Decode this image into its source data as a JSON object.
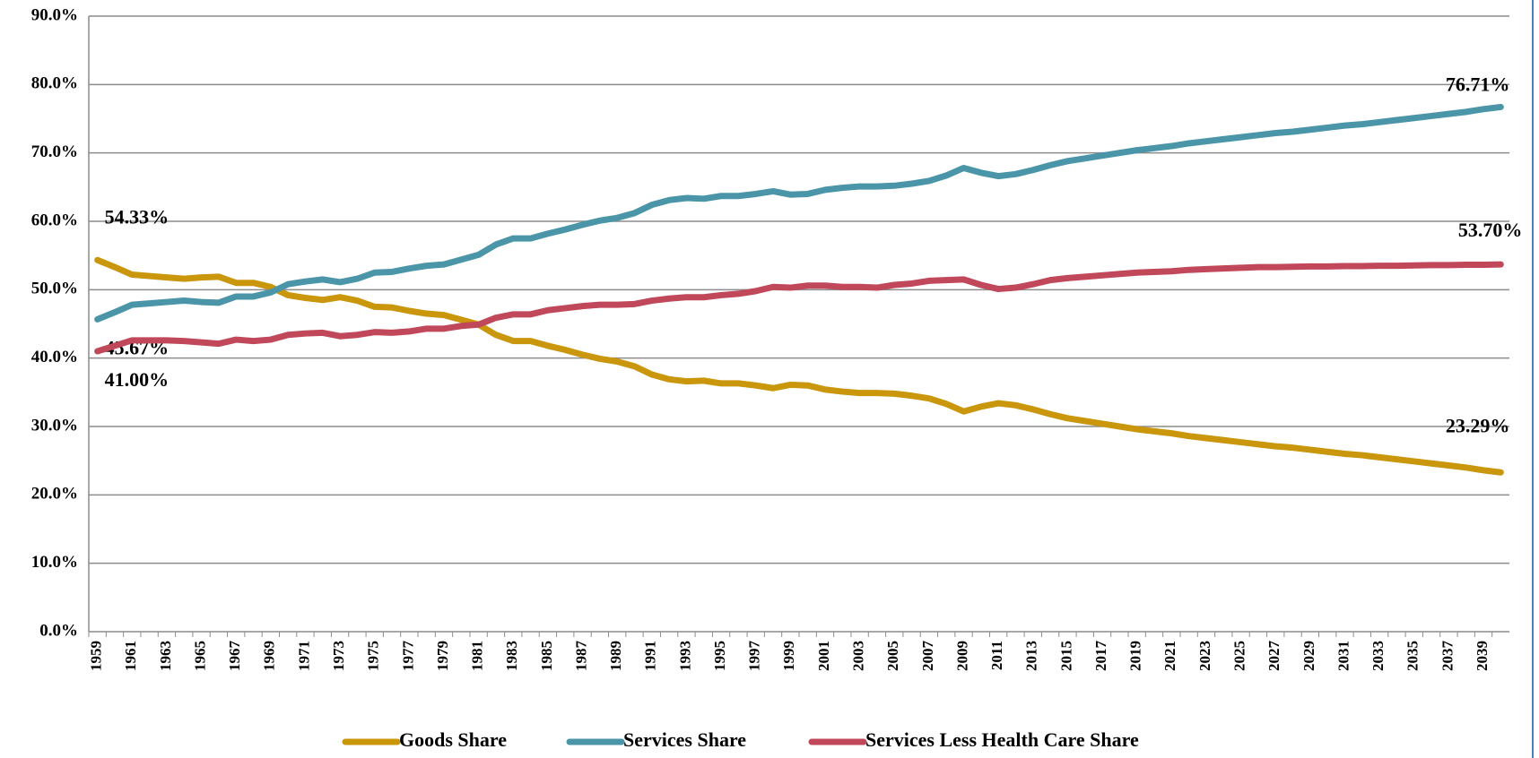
{
  "chart_data": {
    "type": "line",
    "categories": [
      "1959",
      null,
      "1961",
      null,
      "1963",
      null,
      "1965",
      null,
      "1967",
      null,
      "1969",
      null,
      "1971",
      null,
      "1973",
      null,
      "1975",
      null,
      "1977",
      null,
      "1979",
      null,
      "1981",
      null,
      "1983",
      null,
      "1985",
      null,
      "1987",
      null,
      "1989",
      null,
      "1991",
      null,
      "1993",
      null,
      "1995",
      null,
      "1997",
      null,
      "1999",
      null,
      "2001",
      null,
      "2003",
      null,
      "2005",
      null,
      "2007",
      null,
      "2009",
      null,
      "2011",
      null,
      "2013",
      null,
      "2015",
      null,
      "2017",
      null,
      "2019",
      null,
      "2021",
      null,
      "2023",
      null,
      "2025",
      null,
      "2027",
      null,
      "2029",
      null,
      "2031",
      null,
      "2033",
      null,
      "2035",
      null,
      "2037",
      null,
      "2039",
      null
    ],
    "series": [
      {
        "name": "Goods Share",
        "color": "#c9960c",
        "values": [
          54.33,
          53.3,
          52.2,
          52.0,
          51.8,
          51.6,
          51.8,
          51.9,
          51.0,
          51.0,
          50.4,
          49.2,
          48.8,
          48.5,
          48.9,
          48.4,
          47.5,
          47.4,
          46.9,
          46.5,
          46.3,
          45.6,
          44.9,
          43.4,
          42.5,
          42.5,
          41.8,
          41.2,
          40.5,
          39.9,
          39.5,
          38.8,
          37.6,
          36.9,
          36.6,
          36.7,
          36.3,
          36.3,
          36.0,
          35.6,
          36.1,
          36.0,
          35.4,
          35.1,
          34.9,
          34.9,
          34.8,
          34.5,
          34.1,
          33.3,
          32.2,
          32.9,
          33.4,
          33.1,
          32.5,
          31.8,
          31.2,
          30.8,
          30.4,
          30.0,
          29.6,
          29.3,
          29.0,
          28.6,
          28.3,
          28.0,
          27.7,
          27.4,
          27.1,
          26.9,
          26.6,
          26.3,
          26.0,
          25.8,
          25.5,
          25.2,
          24.9,
          24.6,
          24.3,
          24.0,
          23.6,
          23.29
        ],
        "value_labels": [
          "54.33%",
          null,
          null,
          null,
          null,
          null,
          null,
          null,
          null,
          null,
          null,
          null,
          null,
          null,
          null,
          null,
          null,
          null,
          null,
          null,
          null,
          null,
          null,
          null,
          null,
          null,
          null,
          null,
          null,
          null,
          null,
          null,
          null,
          null,
          null,
          null,
          null,
          null,
          null,
          null,
          null,
          null,
          null,
          null,
          null,
          null,
          null,
          null,
          null,
          null,
          null,
          null,
          null,
          null,
          null,
          null,
          null,
          null,
          null,
          null,
          null,
          null,
          null,
          null,
          null,
          null,
          null,
          null,
          null,
          null,
          null,
          null,
          null,
          null,
          null,
          null,
          null,
          null,
          null,
          null,
          null,
          "23.29%"
        ]
      },
      {
        "name": "Services Share",
        "color": "#4a96a8",
        "values": [
          45.67,
          46.7,
          47.8,
          48.0,
          48.2,
          48.4,
          48.2,
          48.1,
          49.0,
          49.0,
          49.6,
          50.8,
          51.2,
          51.5,
          51.1,
          51.6,
          52.5,
          52.6,
          53.1,
          53.5,
          53.7,
          54.4,
          55.1,
          56.6,
          57.5,
          57.5,
          58.2,
          58.8,
          59.5,
          60.1,
          60.5,
          61.2,
          62.4,
          63.1,
          63.4,
          63.3,
          63.7,
          63.7,
          64.0,
          64.4,
          63.9,
          64.0,
          64.6,
          64.9,
          65.1,
          65.1,
          65.2,
          65.5,
          65.9,
          66.7,
          67.8,
          67.1,
          66.6,
          66.9,
          67.5,
          68.2,
          68.8,
          69.2,
          69.6,
          70.0,
          70.4,
          70.7,
          71.0,
          71.4,
          71.7,
          72.0,
          72.3,
          72.6,
          72.9,
          73.1,
          73.4,
          73.7,
          74.0,
          74.2,
          74.5,
          74.8,
          75.1,
          75.4,
          75.7,
          76.0,
          76.4,
          76.71
        ],
        "value_labels": [
          "45.67%",
          null,
          null,
          null,
          null,
          null,
          null,
          null,
          null,
          null,
          null,
          null,
          null,
          null,
          null,
          null,
          null,
          null,
          null,
          null,
          null,
          null,
          null,
          null,
          null,
          null,
          null,
          null,
          null,
          null,
          null,
          null,
          null,
          null,
          null,
          null,
          null,
          null,
          null,
          null,
          null,
          null,
          null,
          null,
          null,
          null,
          null,
          null,
          null,
          null,
          null,
          null,
          null,
          null,
          null,
          null,
          null,
          null,
          null,
          null,
          null,
          null,
          null,
          null,
          null,
          null,
          null,
          null,
          null,
          null,
          null,
          null,
          null,
          null,
          null,
          null,
          null,
          null,
          null,
          null,
          null,
          "76.71%"
        ]
      },
      {
        "name": "Services Less Health Care Share",
        "color": "#c0485a",
        "values": [
          41.0,
          41.8,
          42.6,
          42.6,
          42.6,
          42.5,
          42.3,
          42.1,
          42.7,
          42.5,
          42.7,
          43.4,
          43.6,
          43.7,
          43.2,
          43.4,
          43.8,
          43.7,
          43.9,
          44.3,
          44.3,
          44.7,
          44.9,
          45.9,
          46.4,
          46.4,
          47.0,
          47.3,
          47.6,
          47.8,
          47.8,
          47.9,
          48.4,
          48.7,
          48.9,
          48.9,
          49.2,
          49.4,
          49.8,
          50.4,
          50.3,
          50.6,
          50.6,
          50.4,
          50.4,
          50.3,
          50.7,
          50.9,
          51.3,
          51.4,
          51.5,
          50.7,
          50.1,
          50.3,
          50.8,
          51.4,
          51.7,
          51.9,
          52.1,
          52.3,
          52.5,
          52.6,
          52.7,
          52.9,
          53.0,
          53.1,
          53.2,
          53.3,
          53.3,
          53.35,
          53.4,
          53.4,
          53.45,
          53.45,
          53.5,
          53.5,
          53.55,
          53.6,
          53.6,
          53.65,
          53.65,
          53.7
        ],
        "value_labels": [
          "41.00%",
          null,
          null,
          null,
          null,
          null,
          null,
          null,
          null,
          null,
          null,
          null,
          null,
          null,
          null,
          null,
          null,
          null,
          null,
          null,
          null,
          null,
          null,
          null,
          null,
          null,
          null,
          null,
          null,
          null,
          null,
          null,
          null,
          null,
          null,
          null,
          null,
          null,
          null,
          null,
          null,
          null,
          null,
          null,
          null,
          null,
          null,
          null,
          null,
          null,
          null,
          null,
          null,
          null,
          null,
          null,
          null,
          null,
          null,
          null,
          null,
          null,
          null,
          null,
          null,
          null,
          null,
          null,
          null,
          null,
          null,
          null,
          null,
          null,
          null,
          null,
          null,
          null,
          null,
          null,
          null,
          "53.70%"
        ]
      }
    ],
    "ylim": [
      0,
      90
    ],
    "yticks": [
      {
        "value": 0,
        "label": "0.0%"
      },
      {
        "value": 10,
        "label": "10.0%"
      },
      {
        "value": 20,
        "label": "20.0%"
      },
      {
        "value": 30,
        "label": "30.0%"
      },
      {
        "value": 40,
        "label": "40.0%"
      },
      {
        "value": 50,
        "label": "50.0%"
      },
      {
        "value": 60,
        "label": "60.0%"
      },
      {
        "value": 70,
        "label": "70.0%"
      },
      {
        "value": 80,
        "label": "80.0%"
      },
      {
        "value": 90,
        "label": "90.0%"
      }
    ],
    "grid": true,
    "legend": "bottom"
  }
}
